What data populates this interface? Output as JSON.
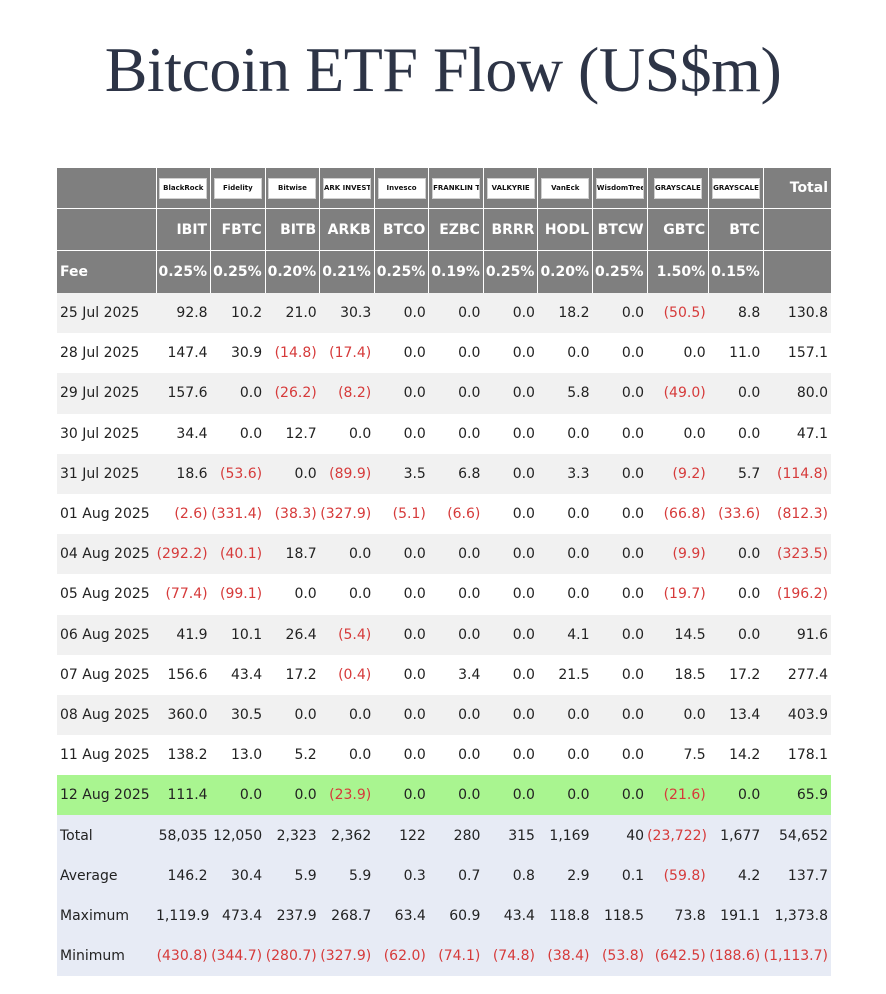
{
  "title": "Bitcoin ETF Flow (US$m)",
  "issuers": [
    "BlackRock",
    "Fidelity",
    "Bitwise",
    "ARK INVEST",
    "Invesco",
    "FRANKLIN TEMPLETON",
    "VALKYRIE",
    "VanEck",
    "WisdomTree",
    "GRAYSCALE",
    "GRAYSCALE"
  ],
  "total_header": "Total",
  "tickers": [
    "IBIT",
    "FBTC",
    "BITB",
    "ARKB",
    "BTCO",
    "EZBC",
    "BRRR",
    "HODL",
    "BTCW",
    "GBTC",
    "BTC"
  ],
  "fee": {
    "label": "Fee",
    "values": [
      "0.25%",
      "0.25%",
      "0.20%",
      "0.21%",
      "0.25%",
      "0.19%",
      "0.25%",
      "0.20%",
      "0.25%",
      "1.50%",
      "0.15%"
    ]
  },
  "rows": [
    {
      "date": "25 Jul 2025",
      "values": [
        "92.8",
        "10.2",
        "21.0",
        "30.3",
        "0.0",
        "0.0",
        "0.0",
        "18.2",
        "0.0",
        "(50.5)",
        "8.8",
        "130.8"
      ]
    },
    {
      "date": "28 Jul 2025",
      "values": [
        "147.4",
        "30.9",
        "(14.8)",
        "(17.4)",
        "0.0",
        "0.0",
        "0.0",
        "0.0",
        "0.0",
        "0.0",
        "11.0",
        "157.1"
      ]
    },
    {
      "date": "29 Jul 2025",
      "values": [
        "157.6",
        "0.0",
        "(26.2)",
        "(8.2)",
        "0.0",
        "0.0",
        "0.0",
        "5.8",
        "0.0",
        "(49.0)",
        "0.0",
        "80.0"
      ]
    },
    {
      "date": "30 Jul 2025",
      "values": [
        "34.4",
        "0.0",
        "12.7",
        "0.0",
        "0.0",
        "0.0",
        "0.0",
        "0.0",
        "0.0",
        "0.0",
        "0.0",
        "47.1"
      ]
    },
    {
      "date": "31 Jul 2025",
      "values": [
        "18.6",
        "(53.6)",
        "0.0",
        "(89.9)",
        "3.5",
        "6.8",
        "0.0",
        "3.3",
        "0.0",
        "(9.2)",
        "5.7",
        "(114.8)"
      ]
    },
    {
      "date": "01 Aug 2025",
      "values": [
        "(2.6)",
        "(331.4)",
        "(38.3)",
        "(327.9)",
        "(5.1)",
        "(6.6)",
        "0.0",
        "0.0",
        "0.0",
        "(66.8)",
        "(33.6)",
        "(812.3)"
      ]
    },
    {
      "date": "04 Aug 2025",
      "values": [
        "(292.2)",
        "(40.1)",
        "18.7",
        "0.0",
        "0.0",
        "0.0",
        "0.0",
        "0.0",
        "0.0",
        "(9.9)",
        "0.0",
        "(323.5)"
      ]
    },
    {
      "date": "05 Aug 2025",
      "values": [
        "(77.4)",
        "(99.1)",
        "0.0",
        "0.0",
        "0.0",
        "0.0",
        "0.0",
        "0.0",
        "0.0",
        "(19.7)",
        "0.0",
        "(196.2)"
      ]
    },
    {
      "date": "06 Aug 2025",
      "values": [
        "41.9",
        "10.1",
        "26.4",
        "(5.4)",
        "0.0",
        "0.0",
        "0.0",
        "4.1",
        "0.0",
        "14.5",
        "0.0",
        "91.6"
      ]
    },
    {
      "date": "07 Aug 2025",
      "values": [
        "156.6",
        "43.4",
        "17.2",
        "(0.4)",
        "0.0",
        "3.4",
        "0.0",
        "21.5",
        "0.0",
        "18.5",
        "17.2",
        "277.4"
      ]
    },
    {
      "date": "08 Aug 2025",
      "values": [
        "360.0",
        "30.5",
        "0.0",
        "0.0",
        "0.0",
        "0.0",
        "0.0",
        "0.0",
        "0.0",
        "0.0",
        "13.4",
        "403.9"
      ]
    },
    {
      "date": "11 Aug 2025",
      "values": [
        "138.2",
        "13.0",
        "5.2",
        "0.0",
        "0.0",
        "0.0",
        "0.0",
        "0.0",
        "0.0",
        "7.5",
        "14.2",
        "178.1"
      ]
    },
    {
      "date": "12 Aug 2025",
      "values": [
        "111.4",
        "0.0",
        "0.0",
        "(23.9)",
        "0.0",
        "0.0",
        "0.0",
        "0.0",
        "0.0",
        "(21.6)",
        "0.0",
        "65.9"
      ],
      "highlight": true
    }
  ],
  "stats": [
    {
      "label": "Total",
      "values": [
        "58,035",
        "12,050",
        "2,323",
        "2,362",
        "122",
        "280",
        "315",
        "1,169",
        "40",
        "(23,722)",
        "1,677",
        "54,652"
      ]
    },
    {
      "label": "Average",
      "values": [
        "146.2",
        "30.4",
        "5.9",
        "5.9",
        "0.3",
        "0.7",
        "0.8",
        "2.9",
        "0.1",
        "(59.8)",
        "4.2",
        "137.7"
      ]
    },
    {
      "label": "Maximum",
      "values": [
        "1,119.9",
        "473.4",
        "237.9",
        "268.7",
        "63.4",
        "60.9",
        "43.4",
        "118.8",
        "118.5",
        "73.8",
        "191.1",
        "1,373.8"
      ]
    },
    {
      "label": "Minimum",
      "values": [
        "(430.8)",
        "(344.7)",
        "(280.7)",
        "(327.9)",
        "(62.0)",
        "(74.1)",
        "(74.8)",
        "(38.4)",
        "(53.8)",
        "(642.5)",
        "(188.6)",
        "(1,113.7)"
      ]
    }
  ],
  "colors": {
    "header_bg": "#7f7f7f",
    "negative": "#d63a3a",
    "highlight_row": "#a9f590",
    "stats_bg": "#e7ebf5",
    "alt_row": "#f1f1f1",
    "title": "#2d3446"
  }
}
